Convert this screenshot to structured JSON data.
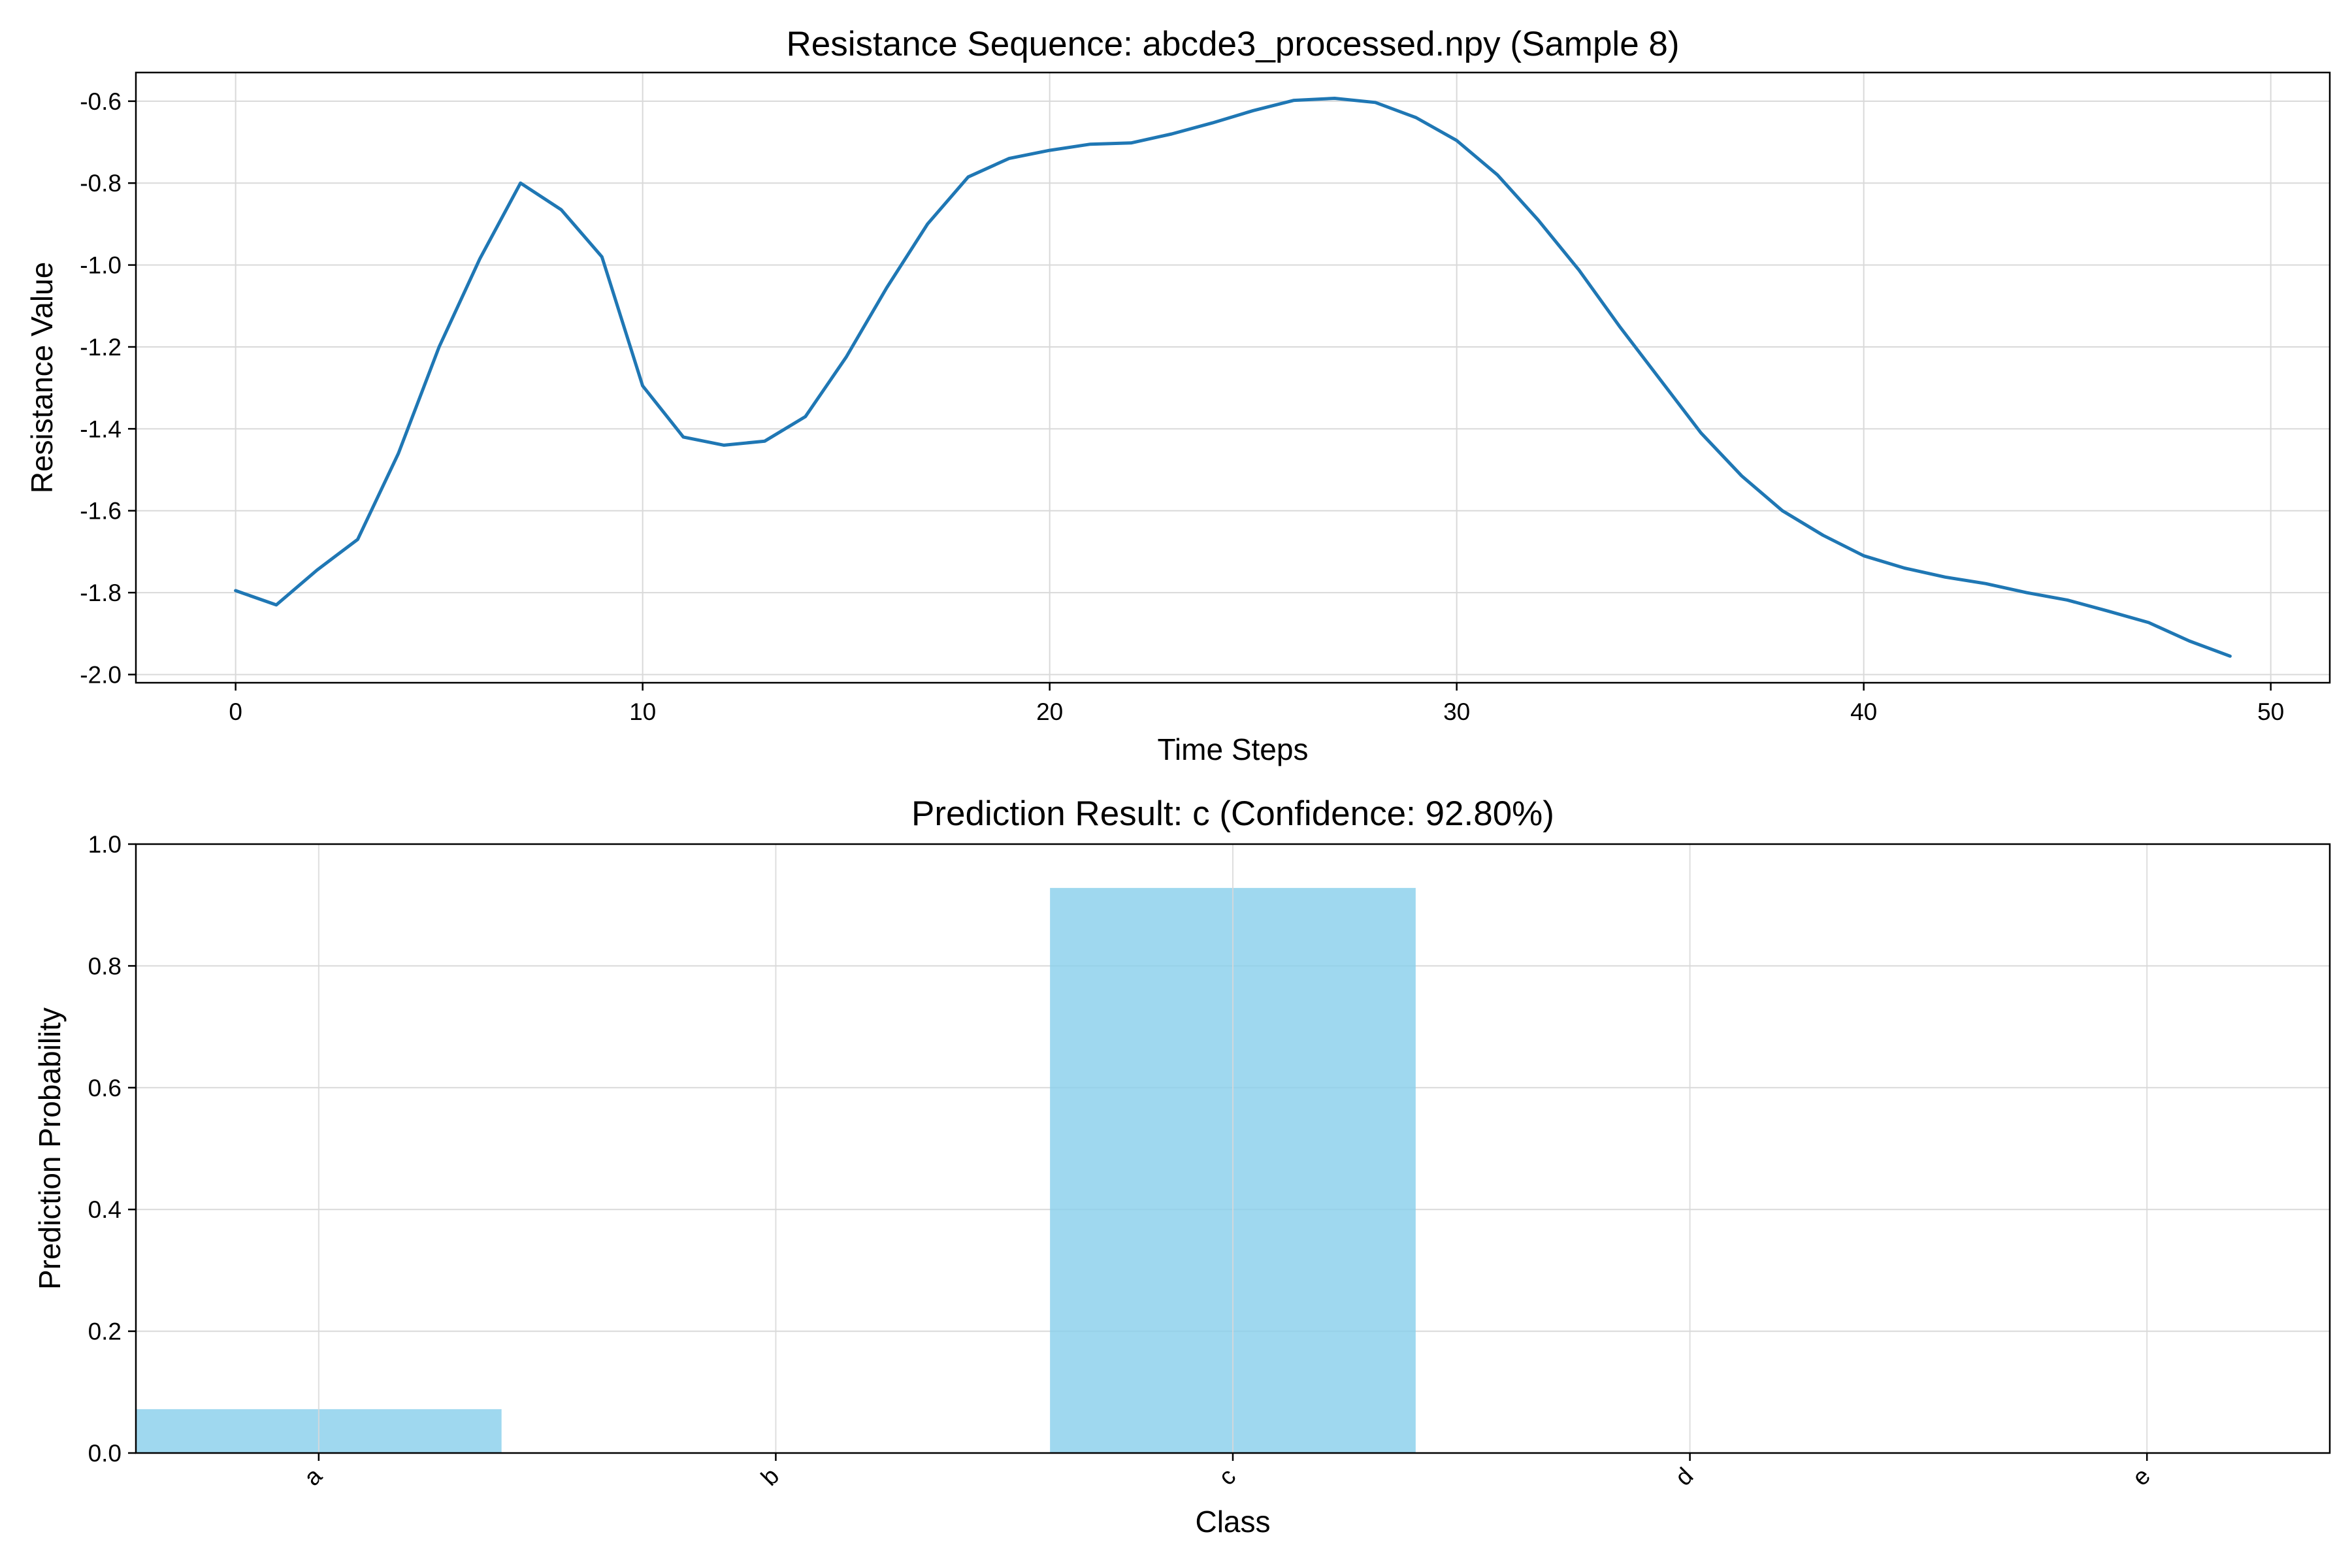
{
  "chart_data": [
    {
      "type": "line",
      "title": "Resistance Sequence: abcde3_processed.npy (Sample 8)",
      "xlabel": "Time Steps",
      "ylabel": "Resistance Value",
      "xlim": [
        -2.45,
        51.45
      ],
      "ylim": [
        -2.02,
        -0.53
      ],
      "x_ticks": [
        0,
        10,
        20,
        30,
        40,
        50
      ],
      "y_ticks": [
        -2.0,
        -1.8,
        -1.6,
        -1.4,
        -1.2,
        -1.0,
        -0.8,
        -0.6
      ],
      "grid": true,
      "color": "#1f77b4",
      "series": [
        {
          "x": [
            0,
            1,
            2,
            3,
            4,
            5,
            6,
            7,
            8,
            9,
            10,
            11,
            12,
            13,
            14,
            15,
            16,
            17,
            18,
            19,
            20,
            21,
            22,
            23,
            24,
            25,
            26,
            27,
            28,
            29,
            30,
            31,
            32,
            33,
            34,
            35,
            36,
            37,
            38,
            39,
            40,
            41,
            42,
            43,
            44,
            45,
            46,
            47,
            48,
            49
          ],
          "values": [
            -1.795,
            -1.83,
            -1.745,
            -1.67,
            -1.46,
            -1.2,
            -0.985,
            -0.8,
            -0.865,
            -0.98,
            -1.295,
            -1.42,
            -1.44,
            -1.43,
            -1.37,
            -1.225,
            -1.055,
            -0.9,
            -0.785,
            -0.74,
            -0.72,
            -0.705,
            -0.702,
            -0.68,
            -0.653,
            -0.623,
            -0.598,
            -0.593,
            -0.603,
            -0.64,
            -0.696,
            -0.78,
            -0.89,
            -1.012,
            -1.15,
            -1.28,
            -1.41,
            -1.515,
            -1.6,
            -1.66,
            -1.71,
            -1.74,
            -1.762,
            -1.778,
            -1.8,
            -1.818,
            -1.845,
            -1.873,
            -1.918,
            -1.955
          ]
        }
      ]
    },
    {
      "type": "bar",
      "title": "Prediction Result: c (Confidence: 92.80%)",
      "xlabel": "Class",
      "ylabel": "Prediction Probability",
      "ylim": [
        0,
        1.0
      ],
      "y_ticks": [
        0.0,
        0.2,
        0.4,
        0.6,
        0.8,
        1.0
      ],
      "grid": true,
      "color": "#87ceeb",
      "categories": [
        "a",
        "b",
        "c",
        "d",
        "e"
      ],
      "values": [
        0.072,
        0.0,
        0.928,
        0.0,
        0.0
      ]
    }
  ]
}
